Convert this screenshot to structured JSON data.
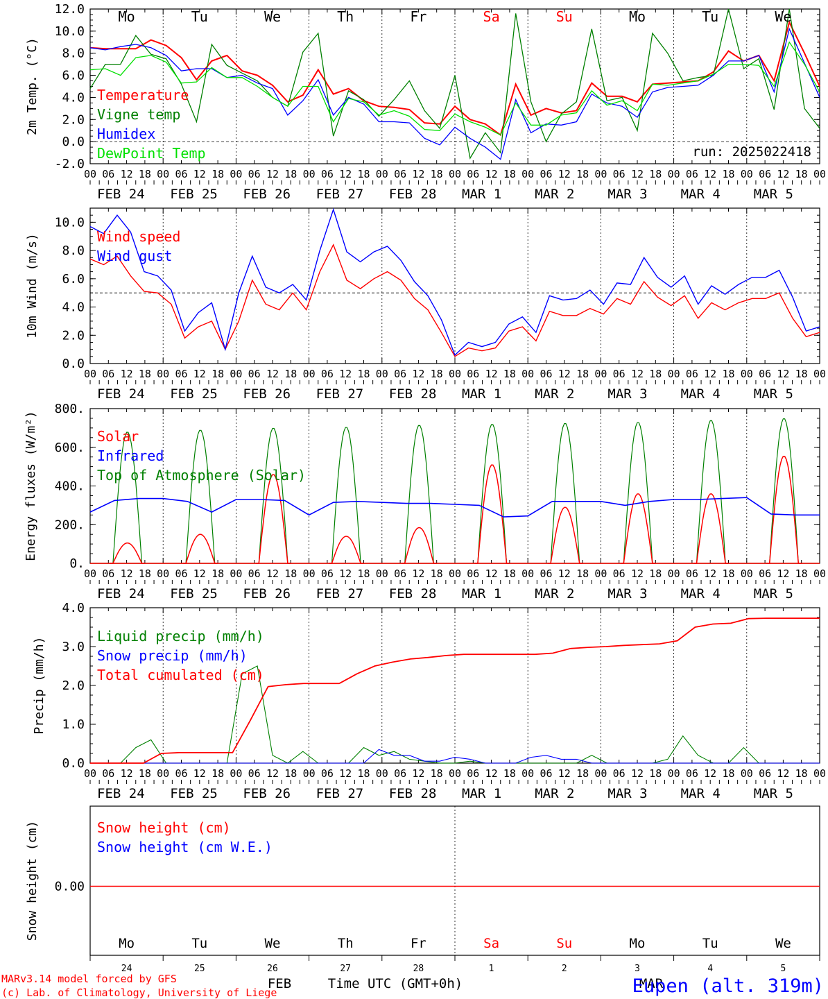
{
  "colors": {
    "red": "#ff0000",
    "green": "#008000",
    "blue": "#0000ff",
    "lightgreen": "#00e000",
    "black": "#000000",
    "grid": "#000000"
  },
  "days": [
    "Mo",
    "Tu",
    "We",
    "Th",
    "Fr",
    "Sa",
    "Su",
    "Mo",
    "Tu",
    "We"
  ],
  "weekend_days": [
    "Sa",
    "Su"
  ],
  "date_labels": [
    "FEB 24",
    "FEB 25",
    "FEB 26",
    "FEB 27",
    "FEB 28",
    "MAR  1",
    "MAR  2",
    "MAR  3",
    "MAR  4",
    "MAR  5"
  ],
  "hour_labels": [
    "00",
    "06",
    "12",
    "18"
  ],
  "bottom": {
    "day_numbers": [
      "24",
      "25",
      "26",
      "27",
      "28",
      "1",
      "2",
      "3",
      "4",
      "5"
    ],
    "month_feb": "FEB",
    "month_mar": "MAR",
    "time_label": "Time UTC (GMT+0h)",
    "credit_1": "MARv3.14 model forced by GFS",
    "credit_2": "(c) Lab. of Climatology, University of Liege",
    "station": "Eupen (alt. 319m)"
  },
  "chart_data": [
    {
      "type": "line",
      "ylabel": "2m Temp. (°C)",
      "ylim": [
        -2,
        12
      ],
      "yticks": [
        "-2.0",
        "0.0",
        "2.0",
        "4.0",
        "6.0",
        "8.0",
        "10.0",
        "12.0"
      ],
      "ytick_values": [
        -2,
        0,
        2,
        4,
        6,
        8,
        10,
        12
      ],
      "ref_line": 0,
      "run_label": "run: 2025022418",
      "x_hours_step": 6,
      "series": [
        {
          "name": "Temperature",
          "color": "red",
          "values": [
            8.5,
            8.4,
            8.4,
            8.4,
            9.2,
            8.7,
            7.6,
            5.6,
            7.3,
            7.8,
            6.4,
            6.0,
            5.1,
            3.6,
            4.2,
            6.5,
            4.3,
            4.8,
            3.7,
            3.2,
            3.1,
            2.9,
            1.7,
            1.6,
            3.2,
            2.0,
            1.6,
            0.6,
            5.2,
            2.4,
            3.0,
            2.6,
            2.8,
            5.3,
            4.1,
            4.1,
            3.6,
            5.2,
            5.3,
            5.4,
            5.5,
            6.3,
            8.2,
            7.3,
            7.8,
            5.5,
            10.8,
            8.0,
            5.0
          ]
        },
        {
          "name": "Vigne temp",
          "color": "green",
          "values": [
            4.8,
            7.0,
            7.0,
            9.6,
            7.9,
            7.5,
            5.2,
            1.8,
            8.8,
            6.9,
            6.2,
            5.5,
            4.0,
            3.2,
            8.1,
            9.8,
            0.5,
            4.6,
            3.8,
            2.3,
            3.8,
            5.5,
            2.8,
            1.2,
            6.0,
            -1.5,
            0.8,
            -1.0,
            11.6,
            3.6,
            0.0,
            2.5,
            3.6,
            10.2,
            3.7,
            4.0,
            1.0,
            9.8,
            8.0,
            5.5,
            5.8,
            6.0,
            12.0,
            6.6,
            7.5,
            2.9,
            12.0,
            3.0,
            1.2
          ]
        },
        {
          "name": "Humidex",
          "color": "blue",
          "values": [
            8.5,
            8.3,
            8.6,
            8.8,
            8.5,
            7.8,
            6.4,
            6.6,
            6.6,
            5.8,
            6.0,
            5.3,
            4.8,
            2.4,
            3.7,
            5.6,
            2.4,
            4.0,
            3.4,
            1.8,
            1.8,
            1.7,
            0.3,
            -0.3,
            1.3,
            0.3,
            -0.5,
            -1.6,
            3.8,
            0.8,
            1.6,
            1.5,
            1.8,
            4.3,
            3.5,
            3.2,
            2.2,
            4.5,
            4.9,
            5.0,
            5.1,
            6.0,
            7.3,
            7.3,
            7.8,
            4.5,
            10.2,
            7.1,
            4.0
          ]
        },
        {
          "name": "DewPoint Temp",
          "color": "lightgreen",
          "values": [
            6.5,
            6.6,
            6.0,
            7.6,
            7.8,
            7.2,
            5.3,
            5.4,
            6.7,
            5.8,
            5.8,
            5.0,
            4.0,
            3.2,
            5.0,
            5.0,
            1.8,
            3.9,
            3.6,
            2.4,
            2.8,
            2.3,
            1.1,
            1.0,
            2.5,
            1.8,
            1.3,
            0.6,
            3.5,
            1.5,
            1.5,
            2.4,
            2.6,
            4.6,
            3.3,
            3.7,
            2.8,
            5.2,
            5.1,
            5.3,
            5.5,
            6.1,
            7.0,
            7.0,
            6.9,
            5.0,
            9.0,
            7.0,
            4.5
          ]
        }
      ]
    },
    {
      "type": "line",
      "ylabel": "10m Wind (m/s)",
      "ylim": [
        0,
        11
      ],
      "yticks": [
        "0.0",
        "2.0",
        "4.0",
        "6.0",
        "8.0",
        "10.0"
      ],
      "ytick_values": [
        0,
        2,
        4,
        6,
        8,
        10
      ],
      "ref_line": 5,
      "x_hours_step": 6,
      "series": [
        {
          "name": "Wind speed",
          "color": "red",
          "values": [
            7.4,
            7.0,
            7.6,
            6.2,
            5.1,
            5.0,
            4.2,
            1.8,
            2.6,
            3.0,
            1.0,
            3.0,
            5.9,
            4.2,
            3.8,
            5.0,
            3.8,
            6.5,
            8.4,
            5.9,
            5.3,
            6.0,
            6.5,
            5.9,
            4.6,
            3.8,
            2.2,
            0.5,
            1.1,
            0.9,
            1.1,
            2.3,
            2.6,
            1.6,
            3.7,
            3.4,
            3.4,
            3.9,
            3.5,
            4.6,
            4.2,
            5.8,
            4.7,
            4.1,
            4.8,
            3.2,
            4.3,
            3.8,
            4.3,
            4.6,
            4.6,
            5.0,
            3.2,
            1.9,
            2.2
          ]
        },
        {
          "name": "Wind gust",
          "color": "blue",
          "values": [
            9.7,
            9.2,
            10.5,
            9.3,
            6.5,
            6.2,
            5.2,
            2.3,
            3.6,
            4.3,
            1.0,
            5.0,
            7.6,
            5.4,
            5.0,
            5.6,
            4.5,
            8.0,
            10.9,
            7.9,
            7.2,
            7.9,
            8.3,
            7.3,
            5.8,
            4.8,
            3.1,
            0.6,
            1.5,
            1.2,
            1.5,
            2.8,
            3.3,
            2.2,
            4.8,
            4.5,
            4.6,
            5.2,
            4.2,
            5.7,
            5.6,
            7.5,
            6.1,
            5.4,
            6.2,
            4.2,
            5.5,
            4.9,
            5.6,
            6.1,
            6.1,
            6.6,
            4.7,
            2.3,
            2.6
          ]
        }
      ]
    },
    {
      "type": "line",
      "ylabel": "Energy fluxes (W/m²)",
      "ylim": [
        0,
        800
      ],
      "yticks": [
        "0.",
        "200.",
        "400.",
        "600.",
        "800."
      ],
      "ytick_values": [
        0,
        200,
        400,
        600,
        800
      ],
      "x_hours_step": 6,
      "solar_peaks": [
        105,
        150,
        460,
        140,
        185,
        510,
        290,
        360,
        360,
        555
      ],
      "toa_peaks": [
        680,
        690,
        700,
        705,
        715,
        720,
        725,
        730,
        740,
        750
      ],
      "series": [
        {
          "name": "Solar",
          "color": "red",
          "daily_peak": [
            105,
            150,
            460,
            140,
            185,
            510,
            290,
            360,
            360,
            555
          ]
        },
        {
          "name": "Infrared",
          "color": "blue",
          "values": [
            265,
            325,
            335,
            335,
            320,
            265,
            330,
            330,
            325,
            250,
            315,
            320,
            315,
            310,
            310,
            305,
            300,
            240,
            245,
            320,
            320,
            320,
            300,
            320,
            330,
            330,
            335,
            340,
            255,
            250,
            250
          ]
        },
        {
          "name": "Top of Atmosphere (Solar)",
          "color": "green",
          "daily_peak": [
            680,
            690,
            700,
            705,
            715,
            720,
            725,
            730,
            740,
            750
          ]
        }
      ]
    },
    {
      "type": "line",
      "ylabel": "Precip (mm/h)",
      "ylim": [
        0,
        4
      ],
      "yticks": [
        "0.0",
        "1.0",
        "2.0",
        "3.0",
        "4.0"
      ],
      "ytick_values": [
        0,
        1,
        2,
        3,
        4
      ],
      "x_hours_step": 6,
      "series": [
        {
          "name": "Liquid precip (mm/h)",
          "color": "green",
          "values": [
            0,
            0,
            0,
            0.4,
            0.6,
            0,
            0,
            0,
            0,
            0,
            2.3,
            2.5,
            0.2,
            0,
            0.3,
            0,
            0,
            0,
            0.4,
            0.2,
            0.3,
            0.1,
            0.05,
            0,
            0,
            0.05,
            0,
            0,
            0,
            0,
            0,
            0,
            0,
            0.2,
            0,
            0,
            0,
            0,
            0.1,
            0.7,
            0.2,
            0,
            0,
            0.4,
            0,
            0,
            0,
            0,
            0
          ]
        },
        {
          "name": "Snow precip (mm/h)",
          "color": "blue",
          "values": [
            0,
            0,
            0,
            0,
            0,
            0,
            0,
            0,
            0,
            0,
            0,
            0,
            0,
            0,
            0,
            0,
            0,
            0,
            0,
            0.35,
            0.2,
            0.2,
            0.05,
            0.05,
            0.15,
            0.1,
            0,
            0,
            0,
            0.15,
            0.2,
            0.1,
            0.1,
            0,
            0,
            0,
            0,
            0,
            0,
            0,
            0,
            0,
            0,
            0,
            0,
            0,
            0,
            0,
            0
          ]
        },
        {
          "name": "Total cumulated (cm)",
          "color": "red",
          "values": [
            0,
            0,
            0,
            0,
            0.25,
            0.27,
            0.27,
            0.27,
            0.27,
            1.1,
            1.97,
            2.02,
            2.05,
            2.05,
            2.05,
            2.3,
            2.5,
            2.6,
            2.68,
            2.72,
            2.77,
            2.8,
            2.8,
            2.8,
            2.8,
            2.8,
            2.83,
            2.95,
            2.98,
            3.0,
            3.03,
            3.05,
            3.07,
            3.15,
            3.5,
            3.58,
            3.6,
            3.72,
            3.73,
            3.73,
            3.73,
            3.73
          ]
        }
      ]
    },
    {
      "type": "line",
      "ylabel": "Snow height (cm)",
      "yticks": [
        "0.00"
      ],
      "ytick_values": [
        0
      ],
      "series": [
        {
          "name": "Snow height (cm)",
          "color": "red",
          "values": [
            0,
            0
          ]
        },
        {
          "name": "Snow height (cm W.E.)",
          "color": "blue",
          "values": [
            0,
            0
          ]
        }
      ]
    }
  ]
}
